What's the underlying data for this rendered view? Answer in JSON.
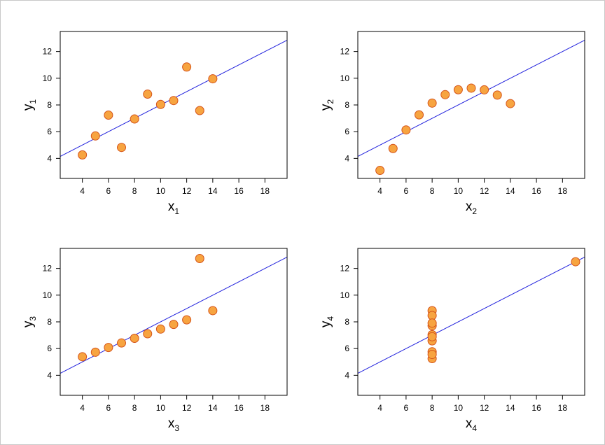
{
  "chart_data": [
    {
      "type": "scatter",
      "name": "panel-1",
      "xlabel": "x",
      "xlabel_sub": "1",
      "ylabel": "y",
      "ylabel_sub": "1",
      "xlim": [
        2.3,
        19.7
      ],
      "ylim": [
        2.5,
        13.5
      ],
      "xticks": [
        4,
        6,
        8,
        10,
        12,
        14,
        16,
        18
      ],
      "yticks": [
        4,
        6,
        8,
        10,
        12
      ],
      "x": [
        10,
        8,
        13,
        9,
        11,
        14,
        6,
        4,
        12,
        7,
        5
      ],
      "y": [
        8.04,
        6.95,
        7.58,
        8.81,
        8.33,
        9.96,
        7.24,
        4.26,
        10.84,
        4.82,
        5.68
      ],
      "regression": {
        "intercept": 3.0,
        "slope": 0.5
      }
    },
    {
      "type": "scatter",
      "name": "panel-2",
      "xlabel": "x",
      "xlabel_sub": "2",
      "ylabel": "y",
      "ylabel_sub": "2",
      "xlim": [
        2.3,
        19.7
      ],
      "ylim": [
        2.5,
        13.5
      ],
      "xticks": [
        4,
        6,
        8,
        10,
        12,
        14,
        16,
        18
      ],
      "yticks": [
        4,
        6,
        8,
        10,
        12
      ],
      "x": [
        10,
        8,
        13,
        9,
        11,
        14,
        6,
        4,
        12,
        7,
        5
      ],
      "y": [
        9.14,
        8.14,
        8.74,
        8.77,
        9.26,
        8.1,
        6.13,
        3.1,
        9.13,
        7.26,
        4.74
      ],
      "regression": {
        "intercept": 3.0,
        "slope": 0.5
      }
    },
    {
      "type": "scatter",
      "name": "panel-3",
      "xlabel": "x",
      "xlabel_sub": "3",
      "ylabel": "y",
      "ylabel_sub": "3",
      "xlim": [
        2.3,
        19.7
      ],
      "ylim": [
        2.5,
        13.5
      ],
      "xticks": [
        4,
        6,
        8,
        10,
        12,
        14,
        16,
        18
      ],
      "yticks": [
        4,
        6,
        8,
        10,
        12
      ],
      "x": [
        10,
        8,
        13,
        9,
        11,
        14,
        6,
        4,
        12,
        7,
        5
      ],
      "y": [
        7.46,
        6.77,
        12.74,
        7.11,
        7.81,
        8.84,
        6.08,
        5.39,
        8.15,
        6.42,
        5.73
      ],
      "regression": {
        "intercept": 3.0,
        "slope": 0.5
      }
    },
    {
      "type": "scatter",
      "name": "panel-4",
      "xlabel": "x",
      "xlabel_sub": "4",
      "ylabel": "y",
      "ylabel_sub": "4",
      "xlim": [
        2.3,
        19.7
      ],
      "ylim": [
        2.5,
        13.5
      ],
      "xticks": [
        4,
        6,
        8,
        10,
        12,
        14,
        16,
        18
      ],
      "yticks": [
        4,
        6,
        8,
        10,
        12
      ],
      "x": [
        8,
        8,
        8,
        8,
        8,
        8,
        8,
        19,
        8,
        8,
        8
      ],
      "y": [
        6.58,
        5.76,
        7.71,
        8.84,
        8.47,
        7.04,
        5.25,
        12.5,
        5.56,
        7.91,
        6.89
      ],
      "regression": {
        "intercept": 3.0,
        "slope": 0.5
      }
    }
  ],
  "colors": {
    "point_fill": "#f7a440",
    "point_stroke": "#d5541b",
    "regression_line": "#2222dd",
    "frame_border": "#c8c8c8"
  }
}
